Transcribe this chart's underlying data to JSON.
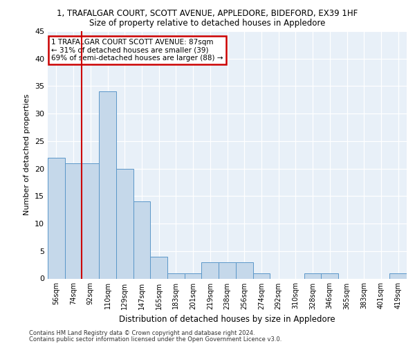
{
  "title1": "1, TRAFALGAR COURT, SCOTT AVENUE, APPLEDORE, BIDEFORD, EX39 1HF",
  "title2": "Size of property relative to detached houses in Appledore",
  "xlabel": "Distribution of detached houses by size in Appledore",
  "ylabel": "Number of detached properties",
  "categories": [
    "56sqm",
    "74sqm",
    "92sqm",
    "110sqm",
    "129sqm",
    "147sqm",
    "165sqm",
    "183sqm",
    "201sqm",
    "219sqm",
    "238sqm",
    "256sqm",
    "274sqm",
    "292sqm",
    "310sqm",
    "328sqm",
    "346sqm",
    "365sqm",
    "383sqm",
    "401sqm",
    "419sqm"
  ],
  "values": [
    22,
    21,
    21,
    34,
    20,
    14,
    4,
    1,
    1,
    3,
    3,
    3,
    1,
    0,
    0,
    1,
    1,
    0,
    0,
    0,
    1
  ],
  "bar_color": "#c5d8ea",
  "bar_edge_color": "#5a96c8",
  "annotation_text": "1 TRAFALGAR COURT SCOTT AVENUE: 87sqm\n← 31% of detached houses are smaller (39)\n69% of semi-detached houses are larger (88) →",
  "annotation_box_color": "#ffffff",
  "annotation_box_edge": "#cc0000",
  "property_line_color": "#cc0000",
  "ylim": [
    0,
    45
  ],
  "yticks": [
    0,
    5,
    10,
    15,
    20,
    25,
    30,
    35,
    40,
    45
  ],
  "bg_color": "#e8f0f8",
  "grid_color": "#ffffff",
  "footer1": "Contains HM Land Registry data © Crown copyright and database right 2024.",
  "footer2": "Contains public sector information licensed under the Open Government Licence v3.0."
}
